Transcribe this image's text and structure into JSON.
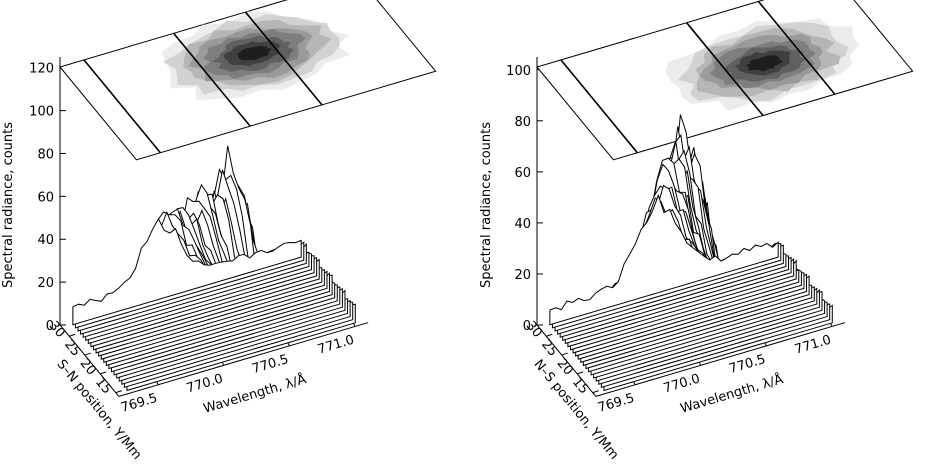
{
  "chart_data": [
    {
      "type": "surface",
      "panel": "left",
      "zlabel": "Spectral radiance, counts",
      "xlabel": "Wavelength, λ/Å",
      "ylabel": "S–N position, Y/Mm",
      "z_ticks": [
        "0",
        "20",
        "40",
        "60",
        "80",
        "100",
        "120"
      ],
      "zlim": [
        0,
        125
      ],
      "x_ticks": [
        "769.5",
        "770.0",
        "770.5",
        "771.0"
      ],
      "xlim": [
        769.2,
        771.1
      ],
      "y_ticks": [
        "15",
        "20",
        "25",
        "30"
      ],
      "ylim": [
        14,
        33
      ],
      "contour_projection": true,
      "profile_params": {
        "count": 22,
        "center_front": 770.15,
        "center_back": 769.95,
        "width": 0.2,
        "baseline": 8,
        "peak_by_row": [
          28,
          30,
          34,
          38,
          35,
          38,
          40,
          41,
          44,
          50,
          52,
          55,
          52,
          48,
          53,
          55,
          66,
          75,
          80,
          72,
          62,
          55
        ]
      }
    },
    {
      "type": "surface",
      "panel": "right",
      "zlabel": "Spectral radiance, counts",
      "xlabel": "Wavelength, λ/Å",
      "ylabel": "N–S position, Y/Mm",
      "z_ticks": [
        "0",
        "20",
        "40",
        "60",
        "80",
        "100"
      ],
      "zlim": [
        0,
        105
      ],
      "x_ticks": [
        "769.5",
        "770.0",
        "770.5",
        "771.0"
      ],
      "xlim": [
        769.2,
        771.1
      ],
      "y_ticks": [
        "15",
        "20",
        "25",
        "30"
      ],
      "ylim": [
        14,
        33
      ],
      "contour_projection": true,
      "profile_params": {
        "count": 22,
        "center_front": 770.0,
        "center_back": 770.1,
        "width": 0.22,
        "baseline": 6,
        "peak_by_row": [
          30,
          32,
          36,
          40,
          44,
          46,
          50,
          52,
          55,
          58,
          62,
          65,
          68,
          72,
          70,
          68,
          66,
          64,
          60,
          55,
          48,
          45
        ]
      }
    }
  ]
}
